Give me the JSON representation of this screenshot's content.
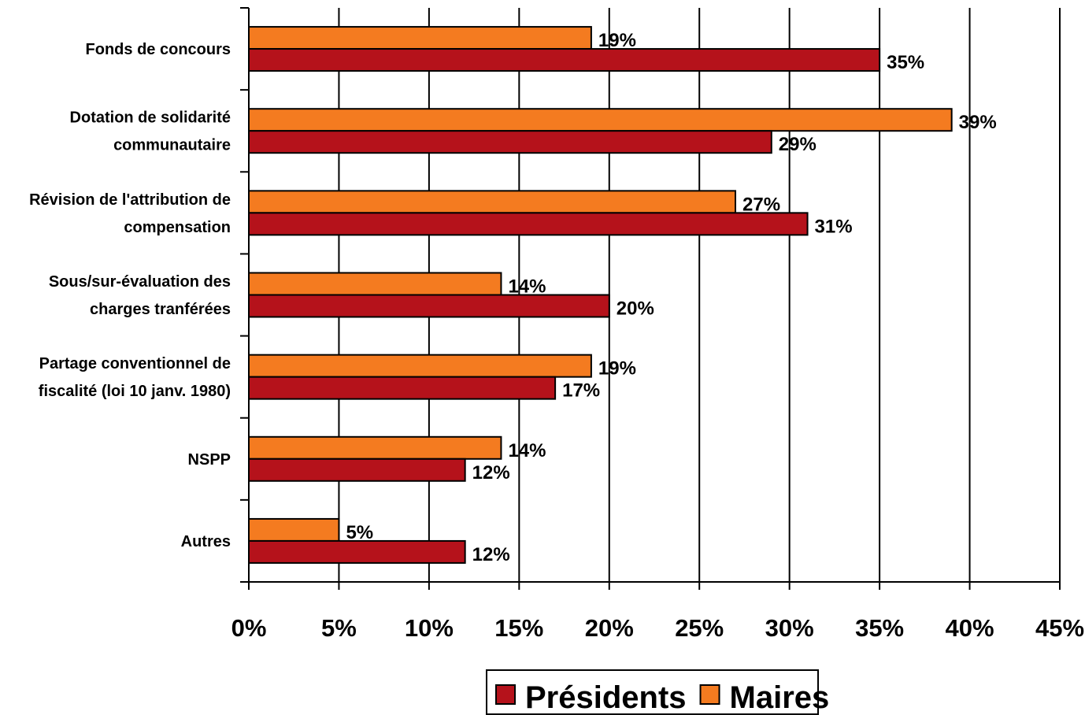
{
  "chart_data": {
    "type": "bar",
    "orientation": "horizontal",
    "categories": [
      [
        "Fonds de concours"
      ],
      [
        "Dotation de solidarité",
        "communautaire"
      ],
      [
        "Révision de l'attribution de",
        "compensation"
      ],
      [
        "Sous/sur-évaluation des",
        "charges tranférées"
      ],
      [
        "Partage conventionnel de",
        "fiscalité (loi 10 janv. 1980)"
      ],
      [
        "NSPP"
      ],
      [
        "Autres"
      ]
    ],
    "series": [
      {
        "name": "Maires",
        "color": "#F47B20",
        "values": [
          19,
          39,
          27,
          14,
          19,
          14,
          5
        ],
        "labels": [
          "19%",
          "39%",
          "27%",
          "14%",
          "19%",
          "14%",
          "5%"
        ]
      },
      {
        "name": "Présidents",
        "color": "#B5121B",
        "values": [
          35,
          29,
          31,
          20,
          17,
          12,
          12
        ],
        "labels": [
          "35%",
          "29%",
          "31%",
          "20%",
          "17%",
          "12%",
          "12%"
        ]
      }
    ],
    "x_ticks": [
      "0%",
      "5%",
      "10%",
      "15%",
      "20%",
      "25%",
      "30%",
      "35%",
      "40%",
      "45%"
    ],
    "xlim": [
      0,
      45
    ],
    "grid": "vertical",
    "legend": {
      "position": "bottom",
      "order": [
        "Présidents",
        "Maires"
      ]
    }
  }
}
